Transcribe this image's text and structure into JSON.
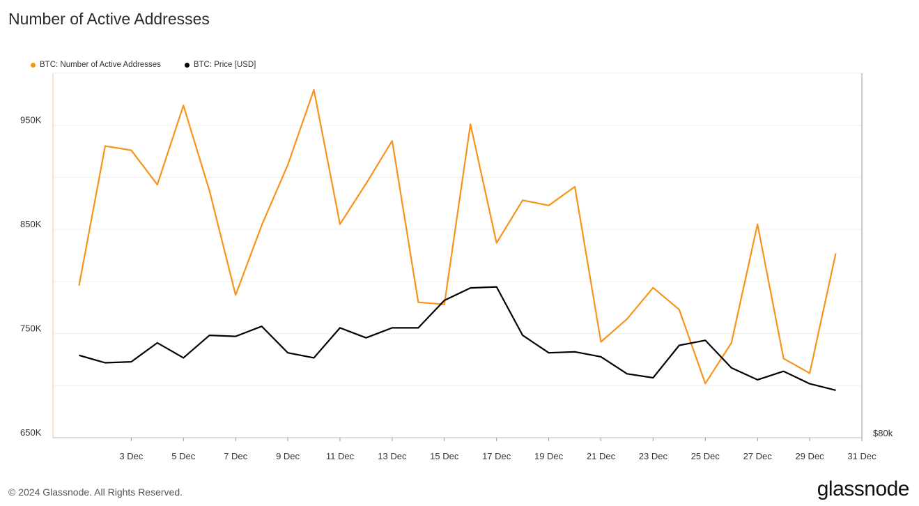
{
  "title": "Number of Active Addresses",
  "footer": {
    "copyright": "© 2024 Glassnode. All Rights Reserved.",
    "logo": "glassnode"
  },
  "colors": {
    "addresses": "#f7931a",
    "price": "#000000",
    "grid": "#eeeeee",
    "axis": "#bbbbbb"
  },
  "chart_data": {
    "type": "line",
    "x_tick_labels": [
      "3 Dec",
      "5 Dec",
      "7 Dec",
      "9 Dec",
      "11 Dec",
      "13 Dec",
      "15 Dec",
      "17 Dec",
      "19 Dec",
      "21 Dec",
      "23 Dec",
      "25 Dec",
      "27 Dec",
      "29 Dec",
      "31 Dec"
    ],
    "y_left_ticks": [
      "650K",
      "750K",
      "850K",
      "950K"
    ],
    "y_left_range": [
      650000,
      1000000
    ],
    "y_right_ticks": [
      "$80k"
    ],
    "x": [
      1,
      2,
      3,
      4,
      5,
      6,
      7,
      8,
      9,
      10,
      11,
      12,
      13,
      14,
      15,
      16,
      17,
      18,
      19,
      20,
      21,
      22,
      23,
      24,
      25,
      26,
      27,
      28,
      29,
      30
    ],
    "series": [
      {
        "name": "BTC: Number of Active Addresses",
        "axis": "left",
        "color": "#f7931a",
        "values": [
          796000,
          930000,
          926000,
          893000,
          969000,
          887000,
          787000,
          854000,
          912000,
          984000,
          855000,
          894000,
          935000,
          780000,
          778000,
          951000,
          837000,
          878000,
          873000,
          891000,
          742000,
          764000,
          794000,
          773000,
          702000,
          741000,
          855000,
          726000,
          712000,
          827000
        ]
      },
      {
        "name": "BTC: Price [USD]",
        "axis": "right",
        "color": "#000000",
        "values": [
          96500,
          95000,
          95200,
          99000,
          96000,
          100500,
          100300,
          102300,
          97000,
          96000,
          102000,
          100000,
          102000,
          102000,
          107500,
          110000,
          110200,
          100500,
          97000,
          97200,
          96200,
          92800,
          92000,
          98500,
          99500,
          94000,
          91600,
          93300,
          90800,
          89500
        ]
      }
    ],
    "legend_position": "top-left",
    "grid": true
  }
}
